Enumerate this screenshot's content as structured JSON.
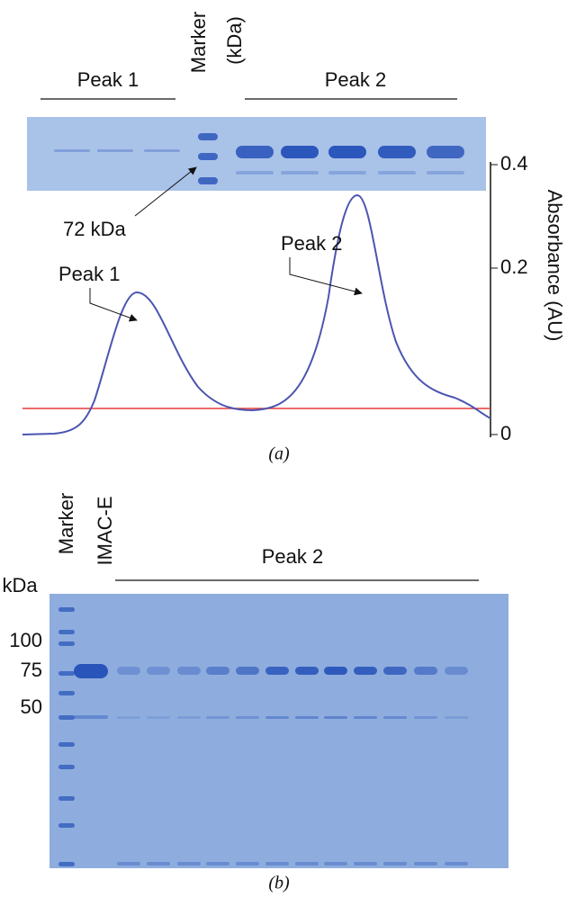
{
  "panel_a": {
    "gel_labels": {
      "peak1": "Peak 1",
      "marker": "Marker",
      "marker_unit": "(kDa)",
      "peak2": "Peak 2"
    },
    "annotations": {
      "kda72": "72 kDa",
      "peak2": "Peak 2",
      "peak1": "Peak 1"
    },
    "y_axis": {
      "label": "Absorbance (AU)",
      "ticks": [
        0.4,
        0.2,
        0
      ]
    },
    "caption": "(a)"
  },
  "panel_b": {
    "lane_labels": {
      "marker": "Marker",
      "imac": "IMAC-E",
      "peak2": "Peak 2"
    },
    "size_unit": "kDa",
    "sizes": [
      100,
      75,
      50
    ],
    "caption": "(b)"
  }
}
